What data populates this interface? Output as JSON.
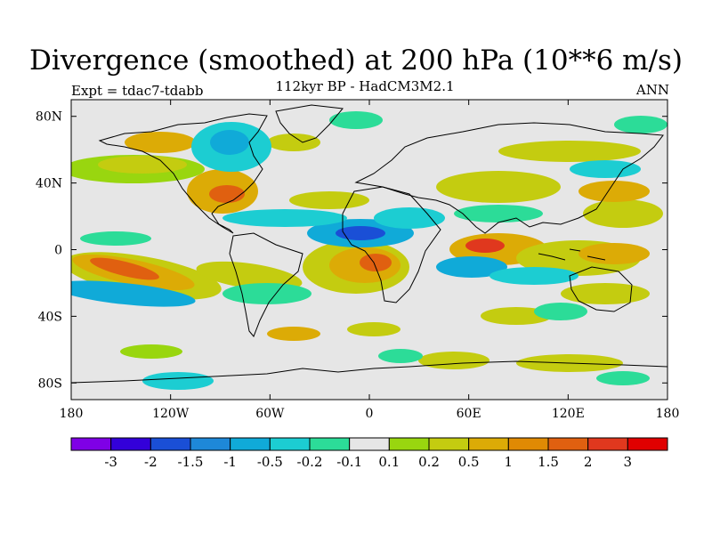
{
  "figure": {
    "title": "Divergence (smoothed) at 200 hPa (10**6 m/s)",
    "subtitle": "112kyr BP - HadCM3M2.1",
    "experiment": "Expt = tdac7-tdabb",
    "period": "ANN"
  },
  "axes": {
    "x_ticks": [
      "180",
      "120W",
      "60W",
      "0",
      "60E",
      "120E",
      "180"
    ],
    "y_ticks": [
      "80N",
      "40N",
      "0",
      "40S",
      "80S"
    ],
    "lon_range": [
      -180,
      180
    ],
    "lat_range": [
      -90,
      90
    ]
  },
  "colorbar": {
    "labels": [
      "-3",
      "-2",
      "-1.5",
      "-1",
      "-0.5",
      "-0.2",
      "-0.1",
      "0.1",
      "0.2",
      "0.5",
      "1",
      "1.5",
      "2",
      "3"
    ],
    "colors": [
      "#7f00e6",
      "#3300d9",
      "#1a4fd6",
      "#1e88d8",
      "#10aad8",
      "#1ccdd2",
      "#2cdc98",
      "#e6e6e6",
      "#99d60f",
      "#c4cc10",
      "#dcab06",
      "#e08a04",
      "#e06010",
      "#e0381e",
      "#e00000"
    ]
  },
  "colors": {
    "no_data_gray": "#e6e6e6",
    "coast": "#000000"
  }
}
